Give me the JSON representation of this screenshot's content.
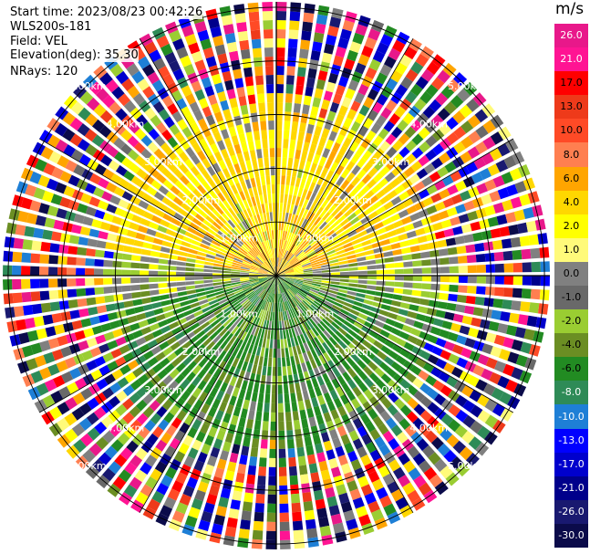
{
  "header": {
    "start_time": "Start time: 2023/08/23 00:42:26",
    "instrument": "WLS200s-181",
    "field": "Field: VEL",
    "elevation": "Elevation(deg): 35.30",
    "nrays": "NRays: 120"
  },
  "colorbar": {
    "unit": "m/s",
    "levels": [
      {
        "label": "26.0",
        "color": "#e8188a"
      },
      {
        "label": "21.0",
        "color": "#ff1493"
      },
      {
        "label": "17.0",
        "color": "#ff0000"
      },
      {
        "label": "13.0",
        "color": "#ee3a1a"
      },
      {
        "label": "10.0",
        "color": "#ff4a26"
      },
      {
        "label": "8.0",
        "color": "#ff7f50"
      },
      {
        "label": "6.0",
        "color": "#ffa500"
      },
      {
        "label": "4.0",
        "color": "#ffd700"
      },
      {
        "label": "2.0",
        "color": "#ffff00"
      },
      {
        "label": "1.0",
        "color": "#fffa7a"
      },
      {
        "label": "0.0",
        "color": "#808080"
      },
      {
        "label": "-1.0",
        "color": "#696969"
      },
      {
        "label": "-2.0",
        "color": "#9acd32"
      },
      {
        "label": "-4.0",
        "color": "#6b8e23"
      },
      {
        "label": "-6.0",
        "color": "#228b22"
      },
      {
        "label": "-8.0",
        "color": "#2e8b57"
      },
      {
        "label": "-10.0",
        "color": "#1e7fd6"
      },
      {
        "label": "-13.0",
        "color": "#0000ff"
      },
      {
        "label": "-17.0",
        "color": "#0000cd"
      },
      {
        "label": "-21.0",
        "color": "#00008b"
      },
      {
        "label": "-26.0",
        "color": "#191970"
      },
      {
        "label": "-30.0",
        "color": "#0b0b4a"
      }
    ]
  },
  "range_rings": {
    "labels": [
      "1.00km",
      "2.00km",
      "3.00km",
      "4.00km",
      "5.00km"
    ]
  }
}
